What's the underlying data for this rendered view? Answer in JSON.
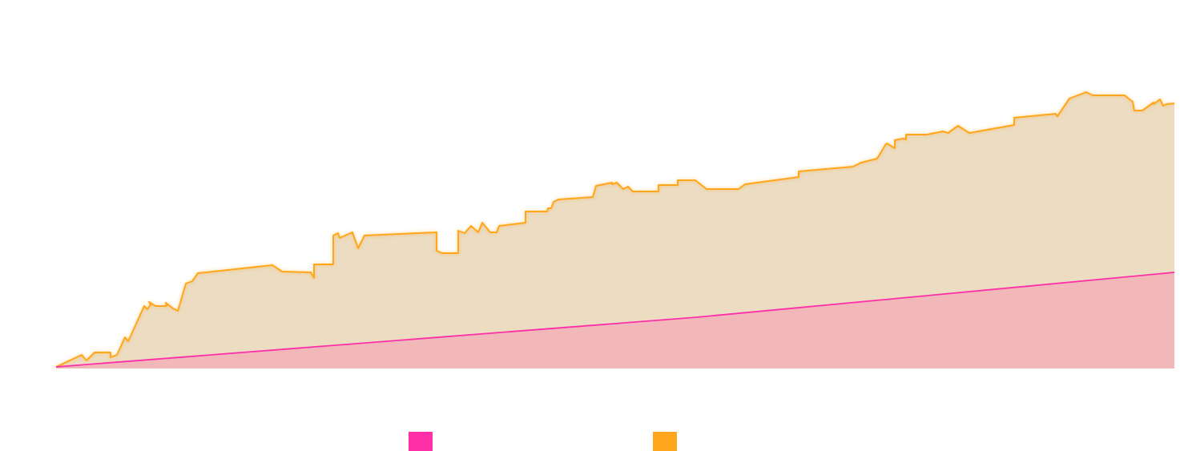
{
  "chart_data": {
    "type": "area",
    "title": "",
    "xlabel": "",
    "ylabel": "",
    "grid": false,
    "legend_position": "bottom-center",
    "x_range": [
      0,
      1396
    ],
    "y_range": [
      0,
      398
    ],
    "series": [
      {
        "color": "#ff2fa8",
        "fill": "#f1b7b9",
        "points": [
          [
            0,
            0
          ],
          [
            800,
            62
          ],
          [
            1396,
            118
          ]
        ]
      },
      {
        "color": "#ffa61c",
        "fill": "#ecdcc2",
        "points": [
          [
            0,
            0
          ],
          [
            32,
            15
          ],
          [
            38,
            8
          ],
          [
            48,
            18
          ],
          [
            68,
            18
          ],
          [
            68,
            12
          ],
          [
            76,
            15
          ],
          [
            86,
            37
          ],
          [
            90,
            32
          ],
          [
            110,
            76
          ],
          [
            114,
            72
          ],
          [
            118,
            78
          ],
          [
            116,
            81
          ],
          [
            124,
            76
          ],
          [
            138,
            76
          ],
          [
            137,
            80
          ],
          [
            146,
            73
          ],
          [
            152,
            70
          ],
          [
            162,
            104
          ],
          [
            170,
            107
          ],
          [
            177,
            117
          ],
          [
            270,
            127
          ],
          [
            282,
            119
          ],
          [
            318,
            118
          ],
          [
            322,
            111
          ],
          [
            322,
            128
          ],
          [
            346,
            128
          ],
          [
            346,
            164
          ],
          [
            352,
            167
          ],
          [
            354,
            161
          ],
          [
            370,
            168
          ],
          [
            377,
            148
          ],
          [
            385,
            164
          ],
          [
            475,
            168
          ],
          [
            475,
            145
          ],
          [
            482,
            142
          ],
          [
            502,
            142
          ],
          [
            502,
            170
          ],
          [
            510,
            167
          ],
          [
            518,
            176
          ],
          [
            527,
            168
          ],
          [
            532,
            180
          ],
          [
            542,
            168
          ],
          [
            550,
            168
          ],
          [
            553,
            176
          ],
          [
            586,
            180
          ],
          [
            586,
            194
          ],
          [
            613,
            194
          ],
          [
            614,
            198
          ],
          [
            618,
            198
          ],
          [
            621,
            206
          ],
          [
            627,
            209
          ],
          [
            670,
            212
          ],
          [
            674,
            226
          ],
          [
            694,
            230
          ],
          [
            694,
            228
          ],
          [
            700,
            230
          ],
          [
            708,
            222
          ],
          [
            714,
            225
          ],
          [
            720,
            219
          ],
          [
            752,
            219
          ],
          [
            752,
            227
          ],
          [
            776,
            227
          ],
          [
            776,
            233
          ],
          [
            798,
            233
          ],
          [
            812,
            222
          ],
          [
            852,
            222
          ],
          [
            860,
            228
          ],
          [
            927,
            237
          ],
          [
            927,
            244
          ],
          [
            995,
            250
          ],
          [
            1005,
            255
          ],
          [
            1025,
            260
          ],
          [
            1035,
            277
          ],
          [
            1037,
            279
          ],
          [
            1047,
            273
          ],
          [
            1047,
            283
          ],
          [
            1057,
            285
          ],
          [
            1061,
            284
          ],
          [
            1061,
            290
          ],
          [
            1087,
            290
          ],
          [
            1097,
            292
          ],
          [
            1107,
            294
          ],
          [
            1114,
            292
          ],
          [
            1116,
            294
          ],
          [
            1126,
            301
          ],
          [
            1140,
            292
          ],
          [
            1196,
            302
          ],
          [
            1196,
            311
          ],
          [
            1248,
            316
          ],
          [
            1249,
            314
          ],
          [
            1250,
            313
          ],
          [
            1265,
            335
          ],
          [
            1286,
            343
          ],
          [
            1294,
            339
          ],
          [
            1334,
            339
          ],
          [
            1340,
            334
          ],
          [
            1344,
            331
          ],
          [
            1346,
            320
          ],
          [
            1356,
            320
          ],
          [
            1370,
            330
          ],
          [
            1370,
            328
          ],
          [
            1378,
            334
          ],
          [
            1382,
            326
          ],
          [
            1386,
            328
          ],
          [
            1396,
            329
          ]
        ]
      }
    ]
  },
  "legend": {
    "items": [
      {
        "color": "#ff2fa8"
      },
      {
        "color": "#ffa61c"
      }
    ]
  }
}
